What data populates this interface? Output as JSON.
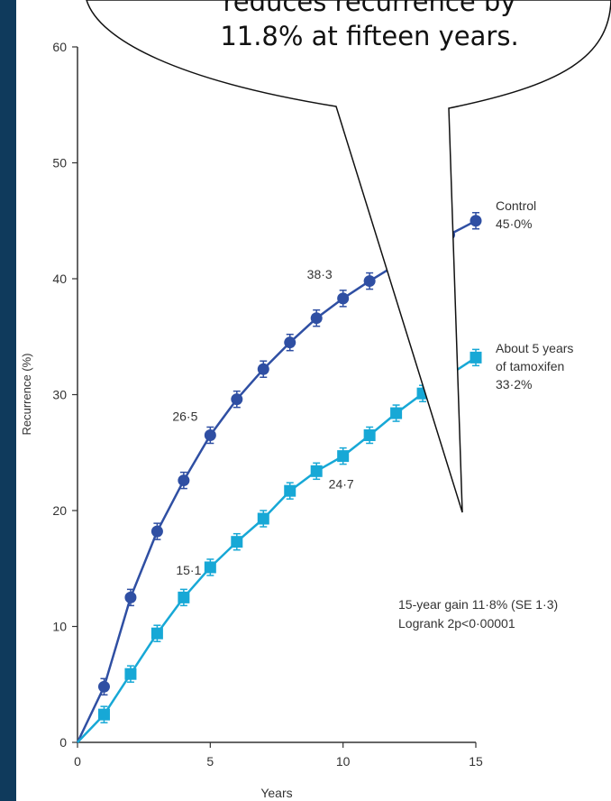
{
  "callout": {
    "line1": "reduces recurrence by",
    "line2": "11.8% at fifteen years."
  },
  "chart_data": {
    "type": "line",
    "xlabel": "Years",
    "ylabel": "Recurrence (%)",
    "xlim": [
      0,
      15
    ],
    "ylim": [
      0,
      60
    ],
    "x_ticks": [
      0,
      5,
      10,
      15
    ],
    "x_tick_labels": [
      "0",
      "5",
      "10",
      "15"
    ],
    "y_ticks": [
      0,
      10,
      20,
      30,
      40,
      50,
      60
    ],
    "y_tick_labels": [
      "0",
      "10",
      "20",
      "30",
      "40",
      "50",
      "60"
    ],
    "grid": false,
    "series": [
      {
        "name": "Control",
        "color": "#2f4fa3",
        "marker": "circle",
        "end_label": [
          "Control",
          "45·0%"
        ],
        "x": [
          0,
          1,
          2,
          3,
          4,
          5,
          6,
          7,
          8,
          9,
          10,
          11,
          12,
          13,
          14,
          15
        ],
        "y": [
          0,
          4.8,
          12.5,
          18.2,
          22.6,
          26.5,
          29.6,
          32.2,
          34.5,
          36.6,
          38.3,
          39.8,
          41.2,
          42.6,
          43.8,
          45.0
        ]
      },
      {
        "name": "About 5 years of tamoxifen",
        "color": "#17a8d6",
        "marker": "square",
        "end_label": [
          "About 5 years",
          "of tamoxifen",
          "33·2%"
        ],
        "x": [
          0,
          1,
          2,
          3,
          4,
          5,
          6,
          7,
          8,
          9,
          10,
          11,
          12,
          13,
          14,
          15
        ],
        "y": [
          0,
          2.4,
          5.9,
          9.4,
          12.5,
          15.1,
          17.3,
          19.3,
          21.7,
          23.4,
          24.7,
          26.5,
          28.4,
          30.1,
          31.7,
          33.2
        ]
      }
    ],
    "data_labels": [
      {
        "text": "26·5",
        "x": 5,
        "y": 26.5
      },
      {
        "text": "38·3",
        "x": 10,
        "y": 38.3
      },
      {
        "text": "15·1",
        "x": 5,
        "y": 15.1
      },
      {
        "text": "24·7",
        "x": 10,
        "y": 24.7
      }
    ],
    "annotations": [
      "15-year gain 11·8% (SE 1·3)",
      "Logrank 2p<0·00001"
    ]
  }
}
